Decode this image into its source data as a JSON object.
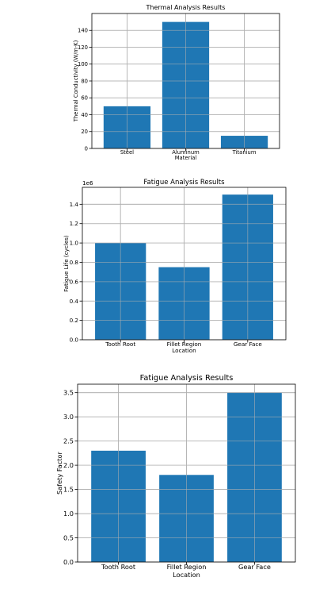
{
  "chart_data": [
    {
      "type": "bar",
      "title": "Thermal Analysis Results",
      "xlabel": "Material",
      "ylabel": "Thermal Conductivity (W/m·K)",
      "categories": [
        "Steel",
        "Aluminum",
        "Titanium"
      ],
      "values": [
        50,
        150,
        15
      ],
      "ylim": [
        0,
        160
      ],
      "yticks": [
        0,
        20,
        40,
        60,
        80,
        100,
        120,
        140
      ],
      "ytick_labels": [
        "0",
        "20",
        "40",
        "60",
        "80",
        "100",
        "120",
        "140"
      ],
      "y_offset_label": "",
      "grid": true,
      "color": "#1f77b4"
    },
    {
      "type": "bar",
      "title": "Fatigue Analysis Results",
      "xlabel": "Location",
      "ylabel": "Fatigue Life (cycles)",
      "categories": [
        "Tooth Root",
        "Fillet Region",
        "Gear Face"
      ],
      "values": [
        1000000,
        750000,
        1500000
      ],
      "ylim": [
        0,
        1575000
      ],
      "yticks": [
        0,
        200000,
        400000,
        600000,
        800000,
        1000000,
        1200000,
        1400000
      ],
      "ytick_labels": [
        "0.0",
        "0.2",
        "0.4",
        "0.6",
        "0.8",
        "1.0",
        "1.2",
        "1.4"
      ],
      "y_offset_label": "1e6",
      "grid": true,
      "color": "#1f77b4"
    },
    {
      "type": "bar",
      "title": "Fatigue Analysis Results",
      "xlabel": "Location",
      "ylabel": "Safety Factor",
      "categories": [
        "Tooth Root",
        "Fillet Region",
        "Gear Face"
      ],
      "values": [
        2.3,
        1.8,
        3.5
      ],
      "ylim": [
        0,
        3.675
      ],
      "yticks": [
        0,
        0.5,
        1.0,
        1.5,
        2.0,
        2.5,
        3.0,
        3.5
      ],
      "ytick_labels": [
        "0.0",
        "0.5",
        "1.0",
        "1.5",
        "2.0",
        "2.5",
        "3.0",
        "3.5"
      ],
      "y_offset_label": "",
      "grid": true,
      "color": "#1f77b4"
    }
  ]
}
